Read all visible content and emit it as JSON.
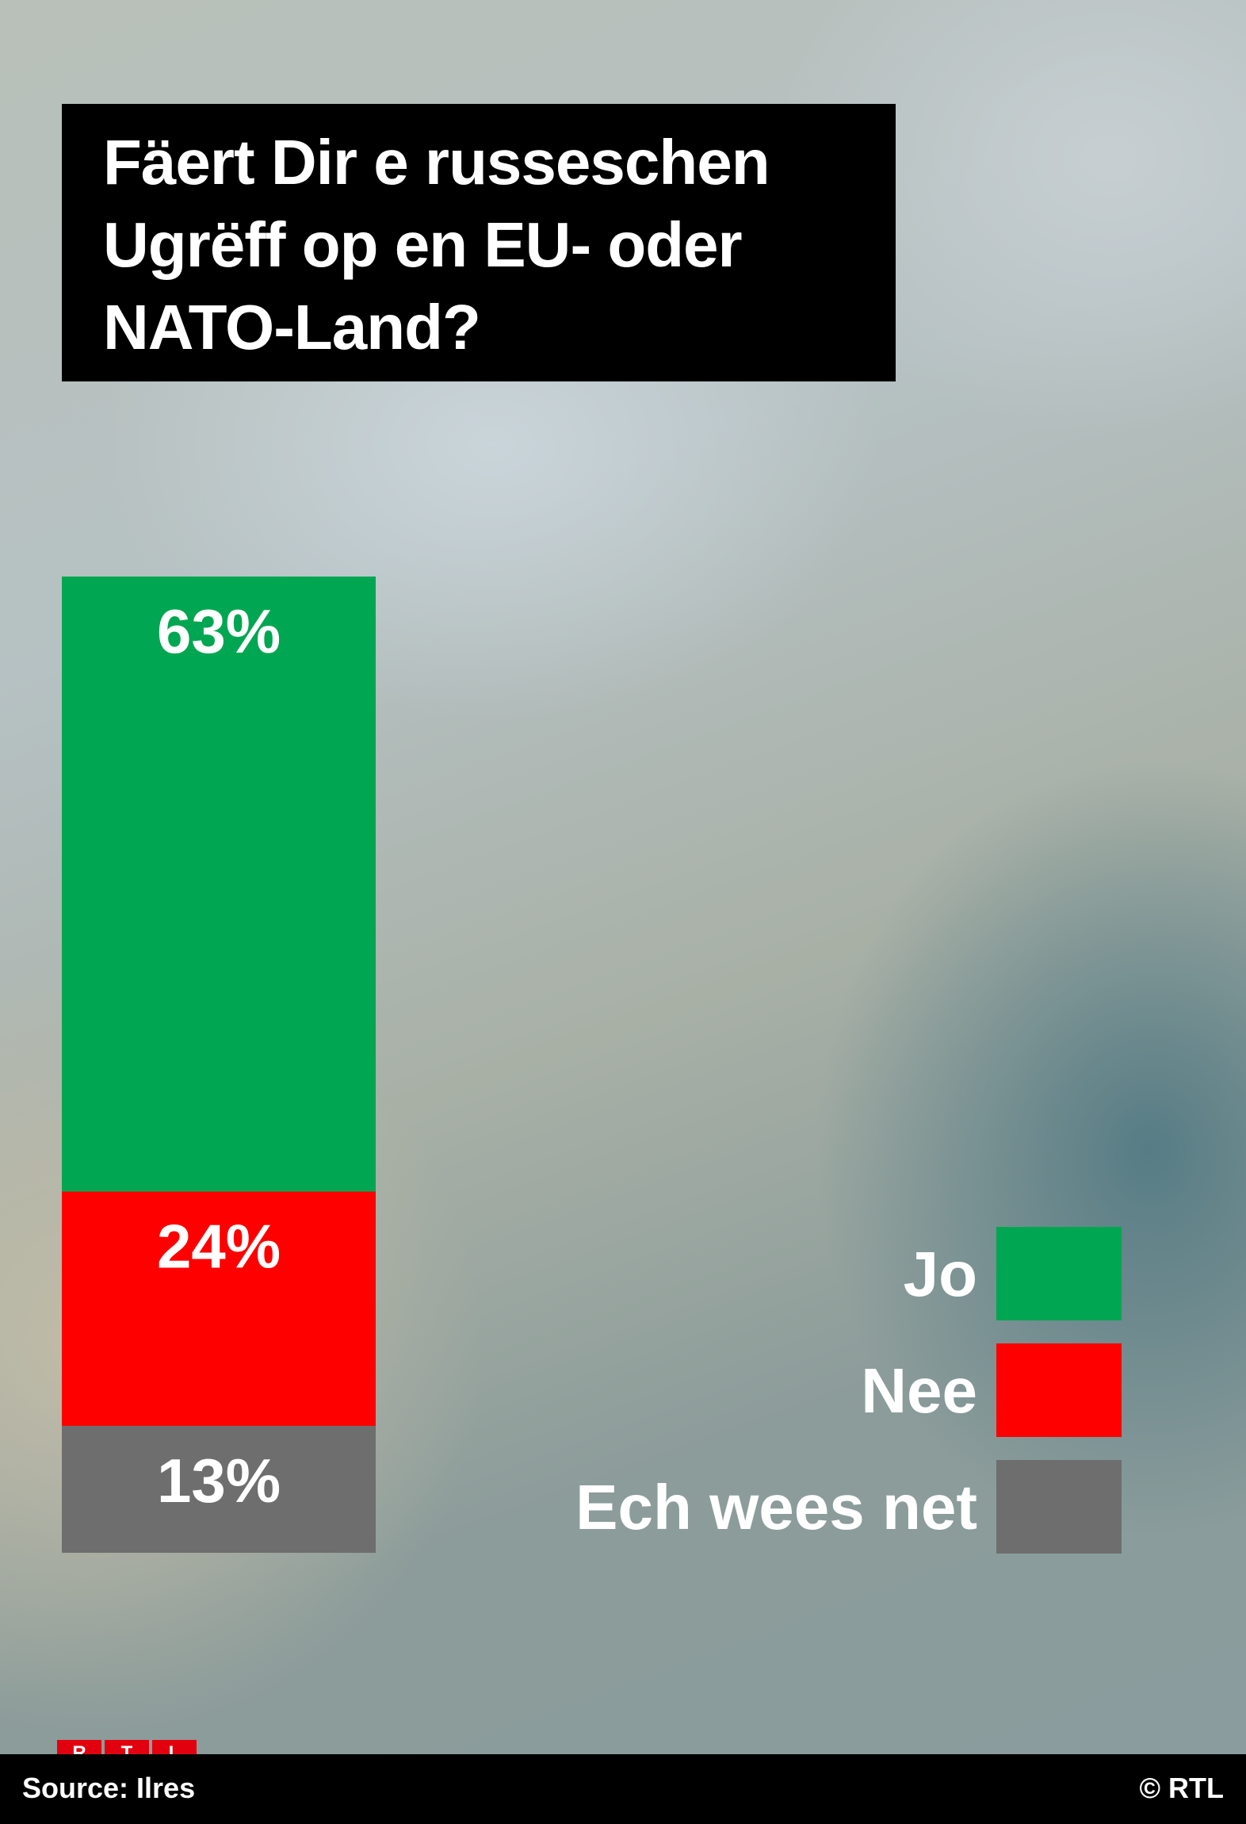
{
  "chart_data": {
    "type": "bar",
    "stacked": true,
    "title": "Fäert Dir e russeschen Ugrëff op en EU- oder NATO-Land?",
    "categories": [
      "Jo",
      "Nee",
      "Ech wees net"
    ],
    "values": [
      63,
      24,
      13
    ],
    "value_labels": [
      "63%",
      "24%",
      "13%"
    ],
    "colors": [
      "#00a651",
      "#ff0000",
      "#6e6e6e"
    ],
    "unit": "%",
    "legend_position": "right",
    "grid": false
  },
  "footer": {
    "source": "Source: Ilres",
    "copyright": "© RTL"
  },
  "logo": {
    "letters": [
      "R",
      "T",
      "L"
    ]
  }
}
